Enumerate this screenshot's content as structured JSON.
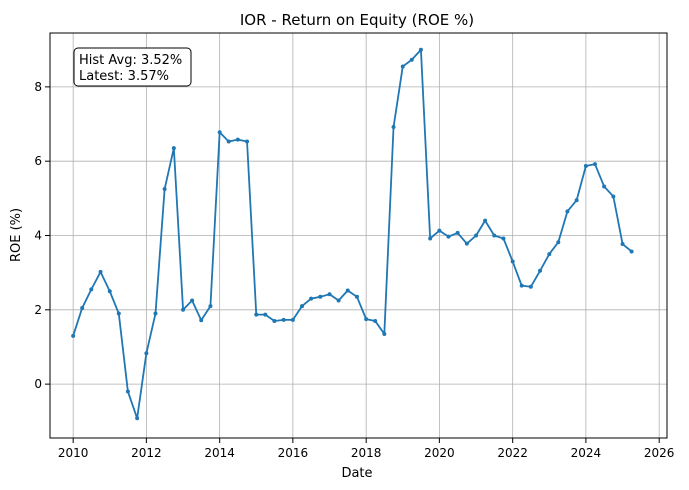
{
  "chart_data": {
    "type": "line",
    "title": "IOR - Return on Equity (ROE %)",
    "xlabel": "Date",
    "ylabel": "ROE (%)",
    "xlim": [
      "2009-05-15",
      "2026-03-20"
    ],
    "ylim": [
      -1.45,
      9.45
    ],
    "x_ticks": [
      "2010",
      "2012",
      "2014",
      "2016",
      "2018",
      "2020",
      "2022",
      "2024",
      "2026"
    ],
    "y_ticks": [
      "0",
      "2",
      "4",
      "6",
      "8"
    ],
    "grid": true,
    "line_color": "#1f77b4",
    "annotation": [
      "Hist Avg: 3.52%",
      "Latest: 3.57%"
    ],
    "series": [
      {
        "x": [
          "2010-01-01",
          "2010-04-01",
          "2010-07-01",
          "2010-10-01",
          "2011-01-01",
          "2011-04-01",
          "2011-07-01",
          "2011-10-01",
          "2012-01-01",
          "2012-04-01",
          "2012-07-01",
          "2012-10-01",
          "2013-01-01",
          "2013-04-01",
          "2013-07-01",
          "2013-10-01",
          "2014-01-01",
          "2014-04-01",
          "2014-07-01",
          "2014-10-01",
          "2015-01-01",
          "2015-04-01",
          "2015-07-01",
          "2015-10-01",
          "2016-01-01",
          "2016-04-01",
          "2016-07-01",
          "2016-10-01",
          "2017-01-01",
          "2017-04-01",
          "2017-07-01",
          "2017-10-01",
          "2018-01-01",
          "2018-04-01",
          "2018-07-01",
          "2018-10-01",
          "2019-01-01",
          "2019-04-01",
          "2019-07-01",
          "2019-10-01",
          "2020-01-01",
          "2020-04-01",
          "2020-07-01",
          "2020-10-01",
          "2021-01-01",
          "2021-04-01",
          "2021-07-01",
          "2021-10-01",
          "2022-01-01",
          "2022-04-01",
          "2022-07-01",
          "2022-10-01",
          "2023-01-01",
          "2023-04-01",
          "2023-07-01",
          "2023-10-01",
          "2024-01-01",
          "2024-04-01",
          "2024-07-01",
          "2024-10-01",
          "2025-01-01",
          "2025-04-01"
        ],
        "values": [
          1.3,
          2.05,
          2.55,
          3.02,
          2.5,
          1.9,
          -0.2,
          -0.92,
          0.83,
          1.9,
          5.25,
          6.35,
          2.0,
          2.25,
          1.72,
          2.1,
          6.78,
          6.53,
          6.58,
          6.53,
          1.87,
          1.87,
          1.7,
          1.73,
          1.73,
          2.1,
          2.3,
          2.35,
          2.42,
          2.25,
          2.52,
          2.35,
          1.75,
          1.7,
          1.35,
          6.92,
          8.55,
          8.73,
          9.0,
          3.92,
          4.13,
          3.97,
          4.07,
          3.78,
          4.0,
          4.4,
          4.0,
          3.92,
          3.3,
          2.65,
          2.62,
          3.05,
          3.5,
          3.82,
          4.65,
          4.95,
          5.87,
          5.92,
          5.32,
          5.05,
          3.77,
          3.57
        ]
      }
    ]
  }
}
